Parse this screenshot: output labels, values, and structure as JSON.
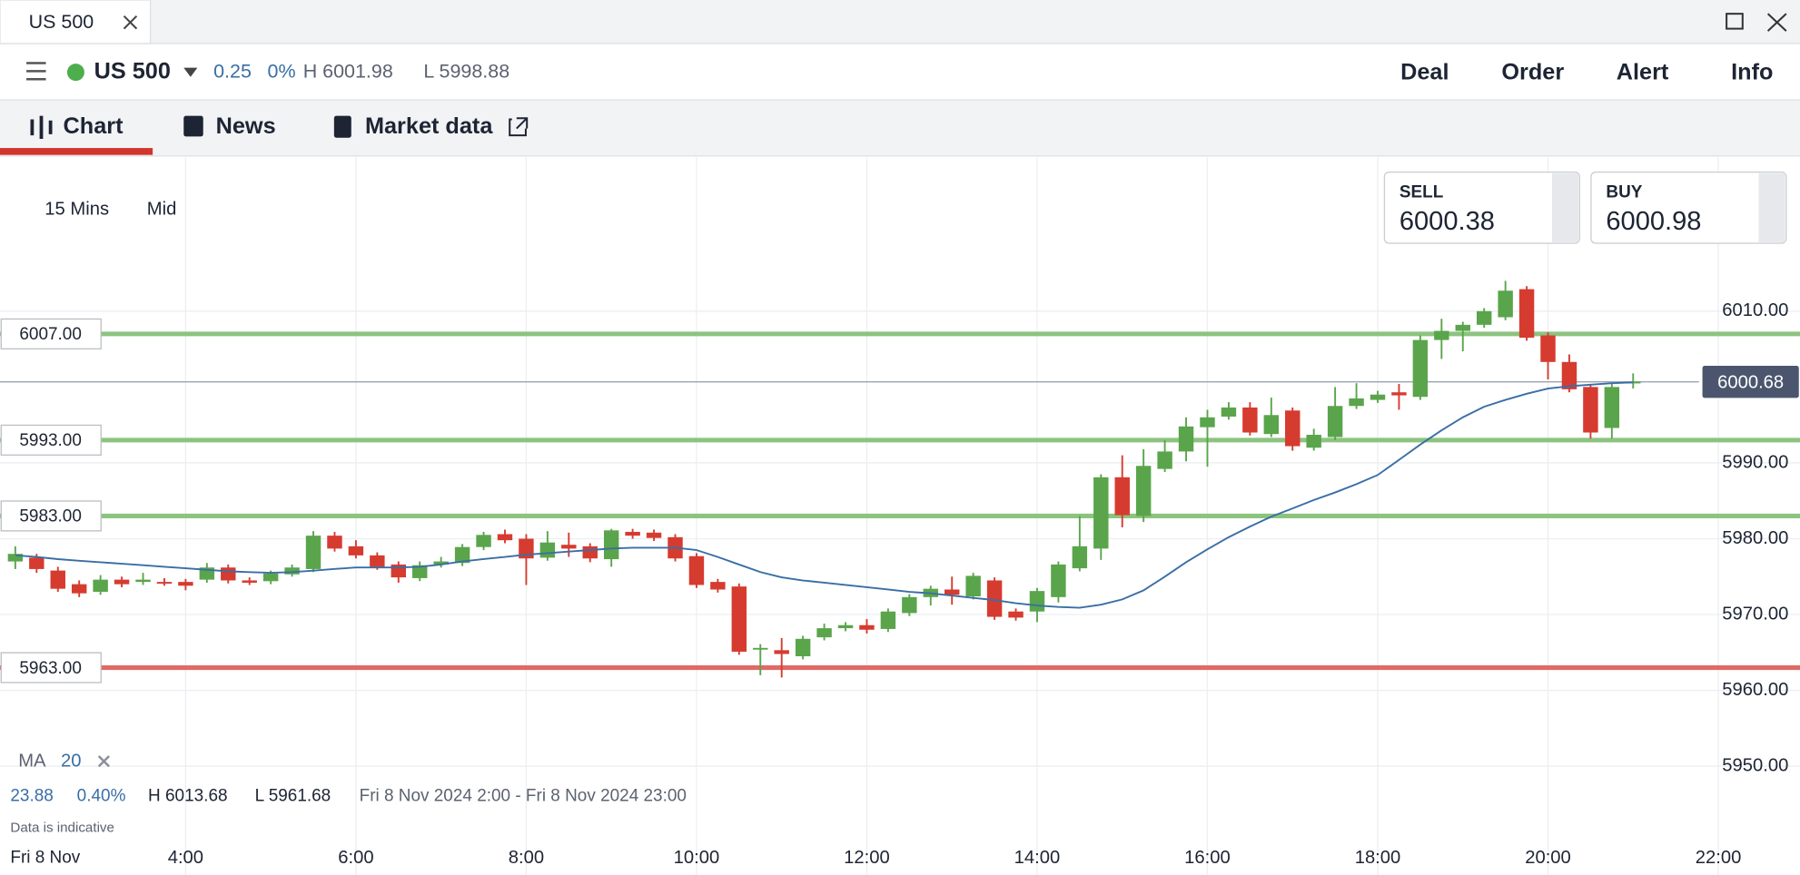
{
  "window": {
    "tab": "US 500"
  },
  "instrument": {
    "name": "US 500",
    "change": "0.25",
    "change_pct": "0%",
    "high": "H 6001.98",
    "low": "L 5998.88"
  },
  "actions": [
    "Deal",
    "Order",
    "Alert",
    "Info"
  ],
  "tabs": [
    "Chart",
    "News",
    "Market data"
  ],
  "toolbar": {
    "interval": "15 Mins",
    "price_type": "Mid"
  },
  "quotes": {
    "sell_label": "SELL",
    "sell": "6000.38",
    "buy_label": "BUY",
    "buy": "6000.98"
  },
  "indicator": {
    "name": "MA",
    "period": "20"
  },
  "stats": {
    "change": "23.88",
    "change_pct": "0.40%",
    "high": "H 6013.68",
    "low": "L 5961.68",
    "range": "Fri 8 Nov 2024 2:00 - Fri 8 Nov 2024 23:00",
    "note": "Data is indicative",
    "date": "Fri 8 Nov"
  },
  "chart_data": {
    "type": "candlestick",
    "up_color": "#5aa54b",
    "down_color": "#d63b30",
    "grid": true,
    "xlim": [
      1.82,
      23.0
    ],
    "ylim": [
      5935.6,
      6030.3
    ],
    "xticks": [
      {
        "value": 4,
        "label": "4:00"
      },
      {
        "value": 6,
        "label": "6:00"
      },
      {
        "value": 8,
        "label": "8:00"
      },
      {
        "value": 10,
        "label": "10:00"
      },
      {
        "value": 12,
        "label": "12:00"
      },
      {
        "value": 14,
        "label": "14:00"
      },
      {
        "value": 16,
        "label": "16:00"
      },
      {
        "value": 18,
        "label": "18:00"
      },
      {
        "value": 20,
        "label": "20:00"
      },
      {
        "value": 22,
        "label": "22:00"
      }
    ],
    "yticks": [
      {
        "value": 5950,
        "label": "5950.00"
      },
      {
        "value": 5960,
        "label": "5960.00"
      },
      {
        "value": 5970,
        "label": "5970.00"
      },
      {
        "value": 5980,
        "label": "5980.00"
      },
      {
        "value": 5990,
        "label": "5990.00"
      },
      {
        "value": 6010,
        "label": "6010.00"
      }
    ],
    "x": [
      2,
      2.25,
      2.5,
      2.75,
      3,
      3.25,
      3.5,
      3.75,
      4,
      4.25,
      4.5,
      4.75,
      5,
      5.25,
      5.5,
      5.75,
      6,
      6.25,
      6.5,
      6.75,
      7,
      7.25,
      7.5,
      7.75,
      8,
      8.25,
      8.5,
      8.75,
      9,
      9.25,
      9.5,
      9.75,
      10,
      10.25,
      10.5,
      10.75,
      11,
      11.25,
      11.5,
      11.75,
      12,
      12.25,
      12.5,
      12.75,
      13,
      13.25,
      13.5,
      13.75,
      14,
      14.25,
      14.5,
      14.75,
      15,
      15.25,
      15.5,
      15.75,
      16,
      16.25,
      16.5,
      16.75,
      17,
      17.25,
      17.5,
      17.75,
      18,
      18.25,
      18.5,
      18.75,
      19,
      19.25,
      19.5,
      19.75,
      20,
      20.25,
      20.5,
      20.75,
      21
    ],
    "candles": [
      {
        "open": 5977,
        "high": 5979,
        "low": 5976,
        "close": 5978
      },
      {
        "open": 5977.5,
        "high": 5978,
        "low": 5975.5,
        "close": 5976
      },
      {
        "open": 5975.8,
        "high": 5976.3,
        "low": 5973,
        "close": 5973.4
      },
      {
        "open": 5974,
        "high": 5974.5,
        "low": 5972.3,
        "close": 5972.8
      },
      {
        "open": 5973,
        "high": 5975.2,
        "low": 5972.6,
        "close": 5974.6
      },
      {
        "open": 5974.6,
        "high": 5975,
        "low": 5973.6,
        "close": 5974
      },
      {
        "open": 5974.3,
        "high": 5975.5,
        "low": 5973.9,
        "close": 5974.6
      },
      {
        "open": 5974.3,
        "high": 5974.8,
        "low": 5973.8,
        "close": 5974.2
      },
      {
        "open": 5974.3,
        "high": 5974.7,
        "low": 5973.2,
        "close": 5973.8
      },
      {
        "open": 5974.6,
        "high": 5976.8,
        "low": 5974.2,
        "close": 5976.2
      },
      {
        "open": 5976.2,
        "high": 5976.6,
        "low": 5974.1,
        "close": 5974.5
      },
      {
        "open": 5974.5,
        "high": 5974.9,
        "low": 5973.9,
        "close": 5974.2
      },
      {
        "open": 5974.4,
        "high": 5975.8,
        "low": 5974,
        "close": 5975.4
      },
      {
        "open": 5975.3,
        "high": 5976.6,
        "low": 5975,
        "close": 5976.2
      },
      {
        "open": 5976,
        "high": 5981,
        "low": 5975.6,
        "close": 5980.4
      },
      {
        "open": 5980.4,
        "high": 5980.9,
        "low": 5978.3,
        "close": 5978.7
      },
      {
        "open": 5979,
        "high": 5979.8,
        "low": 5977.4,
        "close": 5977.8
      },
      {
        "open": 5977.8,
        "high": 5978.2,
        "low": 5975.9,
        "close": 5976.3
      },
      {
        "open": 5976.6,
        "high": 5977,
        "low": 5974.2,
        "close": 5974.9
      },
      {
        "open": 5974.8,
        "high": 5977,
        "low": 5974.4,
        "close": 5976.5
      },
      {
        "open": 5976.6,
        "high": 5977.6,
        "low": 5976.2,
        "close": 5977
      },
      {
        "open": 5976.8,
        "high": 5979.3,
        "low": 5976.4,
        "close": 5978.9
      },
      {
        "open": 5978.9,
        "high": 5980.9,
        "low": 5978.5,
        "close": 5980.5
      },
      {
        "open": 5980.6,
        "high": 5981.2,
        "low": 5979.4,
        "close": 5979.8
      },
      {
        "open": 5980,
        "high": 5980.6,
        "low": 5973.9,
        "close": 5977.4
      },
      {
        "open": 5977.5,
        "high": 5981,
        "low": 5977.1,
        "close": 5979.5
      },
      {
        "open": 5979.2,
        "high": 5980.8,
        "low": 5977.6,
        "close": 5978.7
      },
      {
        "open": 5979,
        "high": 5979.4,
        "low": 5976.9,
        "close": 5977.4
      },
      {
        "open": 5977.3,
        "high": 5981.3,
        "low": 5976.3,
        "close": 5981.1
      },
      {
        "open": 5980.9,
        "high": 5981.3,
        "low": 5980,
        "close": 5980.4
      },
      {
        "open": 5980.8,
        "high": 5981.2,
        "low": 5979.7,
        "close": 5980.1
      },
      {
        "open": 5980.2,
        "high": 5980.6,
        "low": 5977,
        "close": 5977.4
      },
      {
        "open": 5977.7,
        "high": 5978.1,
        "low": 5973.5,
        "close": 5973.9
      },
      {
        "open": 5974.3,
        "high": 5974.7,
        "low": 5972.9,
        "close": 5973.3
      },
      {
        "open": 5973.7,
        "high": 5974.1,
        "low": 5964.7,
        "close": 5965.1
      },
      {
        "open": 5965.4,
        "high": 5966.1,
        "low": 5962,
        "close": 5965.6
      },
      {
        "open": 5965.3,
        "high": 5966.9,
        "low": 5961.7,
        "close": 5964.8
      },
      {
        "open": 5964.5,
        "high": 5967.2,
        "low": 5964.1,
        "close": 5966.8
      },
      {
        "open": 5967,
        "high": 5968.8,
        "low": 5966.6,
        "close": 5968.2
      },
      {
        "open": 5968.2,
        "high": 5969,
        "low": 5967.8,
        "close": 5968.6
      },
      {
        "open": 5968.6,
        "high": 5969.4,
        "low": 5967.5,
        "close": 5968
      },
      {
        "open": 5968.1,
        "high": 5970.8,
        "low": 5967.7,
        "close": 5970.4
      },
      {
        "open": 5970.2,
        "high": 5972.7,
        "low": 5969.8,
        "close": 5972.3
      },
      {
        "open": 5972.3,
        "high": 5973.8,
        "low": 5971.2,
        "close": 5973.4
      },
      {
        "open": 5973.3,
        "high": 5975,
        "low": 5971.3,
        "close": 5972.6
      },
      {
        "open": 5972.4,
        "high": 5975.5,
        "low": 5972,
        "close": 5975.1
      },
      {
        "open": 5974.5,
        "high": 5974.9,
        "low": 5969.3,
        "close": 5969.7
      },
      {
        "open": 5970.4,
        "high": 5970.8,
        "low": 5969.2,
        "close": 5969.6
      },
      {
        "open": 5970.4,
        "high": 5973.5,
        "low": 5969,
        "close": 5973.1
      },
      {
        "open": 5972.3,
        "high": 5977,
        "low": 5971.6,
        "close": 5976.6
      },
      {
        "open": 5976.1,
        "high": 5983,
        "low": 5975.7,
        "close": 5979
      },
      {
        "open": 5978.7,
        "high": 5988.5,
        "low": 5977.2,
        "close": 5988.1
      },
      {
        "open": 5988.1,
        "high": 5991,
        "low": 5981.5,
        "close": 5983.1
      },
      {
        "open": 5983,
        "high": 5991.8,
        "low": 5982.2,
        "close": 5989.6
      },
      {
        "open": 5989.2,
        "high": 5993,
        "low": 5988.8,
        "close": 5991.5
      },
      {
        "open": 5991.5,
        "high": 5996,
        "low": 5990.2,
        "close": 5994.8
      },
      {
        "open": 5994.7,
        "high": 5997,
        "low": 5989.5,
        "close": 5996
      },
      {
        "open": 5996.1,
        "high": 5998,
        "low": 5995.7,
        "close": 5997.3
      },
      {
        "open": 5997.3,
        "high": 5998,
        "low": 5993.6,
        "close": 5994
      },
      {
        "open": 5993.8,
        "high": 5998.6,
        "low": 5993.4,
        "close": 5996.3
      },
      {
        "open": 5996.9,
        "high": 5997.3,
        "low": 5991.6,
        "close": 5992.2
      },
      {
        "open": 5992,
        "high": 5994.5,
        "low": 5991.6,
        "close": 5993.7
      },
      {
        "open": 5993.4,
        "high": 6000,
        "low": 5993,
        "close": 5997.5
      },
      {
        "open": 5997.5,
        "high": 6000.5,
        "low": 5997.1,
        "close": 5998.5
      },
      {
        "open": 5998.3,
        "high": 5999.5,
        "low": 5997.9,
        "close": 5999
      },
      {
        "open": 5999.3,
        "high": 6000.4,
        "low": 5997,
        "close": 5998.9
      },
      {
        "open": 5998.7,
        "high": 6006.8,
        "low": 5998.3,
        "close": 6006.2
      },
      {
        "open": 6006.2,
        "high": 6009,
        "low": 6003.7,
        "close": 6007.4
      },
      {
        "open": 6007.4,
        "high": 6008.6,
        "low": 6004.7,
        "close": 6008.2
      },
      {
        "open": 6008.2,
        "high": 6010.4,
        "low": 6007.8,
        "close": 6010
      },
      {
        "open": 6009.2,
        "high": 6014,
        "low": 6008.8,
        "close": 6012.7
      },
      {
        "open": 6012.9,
        "high": 6013.3,
        "low": 6006.1,
        "close": 6006.5
      },
      {
        "open": 6006.8,
        "high": 6007.2,
        "low": 6001,
        "close": 6003.3
      },
      {
        "open": 6003.3,
        "high": 6004.3,
        "low": 5999.3,
        "close": 5999.7
      },
      {
        "open": 6000,
        "high": 6000.4,
        "low": 5993.2,
        "close": 5994
      },
      {
        "open": 5994.6,
        "high": 6000.4,
        "low": 5993.2,
        "close": 6000
      },
      {
        "open": 6000.6,
        "high": 6001.8,
        "low": 5999.8,
        "close": 6000.7
      }
    ],
    "ma": {
      "color": "#3a6ea5",
      "values": [
        5977.8,
        5977.6,
        5977.3,
        5977.1,
        5976.9,
        5976.7,
        5976.5,
        5976.3,
        5976.1,
        5975.9,
        5975.7,
        5975.6,
        5975.5,
        5975.6,
        5975.8,
        5976,
        5976.2,
        5976.2,
        5976.2,
        5976.3,
        5976.6,
        5977,
        5977.3,
        5977.6,
        5977.9,
        5978.1,
        5978.3,
        5978.5,
        5978.7,
        5978.8,
        5978.8,
        5978.8,
        5978.5,
        5977.6,
        5976.6,
        5975.6,
        5974.9,
        5974.5,
        5974.2,
        5973.9,
        5973.6,
        5973.3,
        5973,
        5972.8,
        5972.5,
        5972.2,
        5971.9,
        5971.5,
        5971.2,
        5971,
        5970.9,
        5971.3,
        5972,
        5973.2,
        5975,
        5976.9,
        5978.6,
        5980.2,
        5981.6,
        5982.9,
        5984,
        5985.1,
        5986.1,
        5987.2,
        5988.4,
        5990.4,
        5992.4,
        5994.3,
        5996,
        5997.4,
        5998.3,
        5999.1,
        5999.8,
        6000.1,
        6000.3,
        6000.5,
        6000.6
      ]
    },
    "levels": [
      {
        "value": 6007,
        "label": "6007.00",
        "color": "#8cc47f"
      },
      {
        "value": 5993,
        "label": "5993.00",
        "color": "#8cc47f"
      },
      {
        "value": 5983,
        "label": "5983.00",
        "color": "#8cc47f"
      },
      {
        "value": 5963,
        "label": "5963.00",
        "color": "#e06a66"
      }
    ],
    "current_price": {
      "value": 6000.68,
      "label": "6000.68"
    }
  }
}
